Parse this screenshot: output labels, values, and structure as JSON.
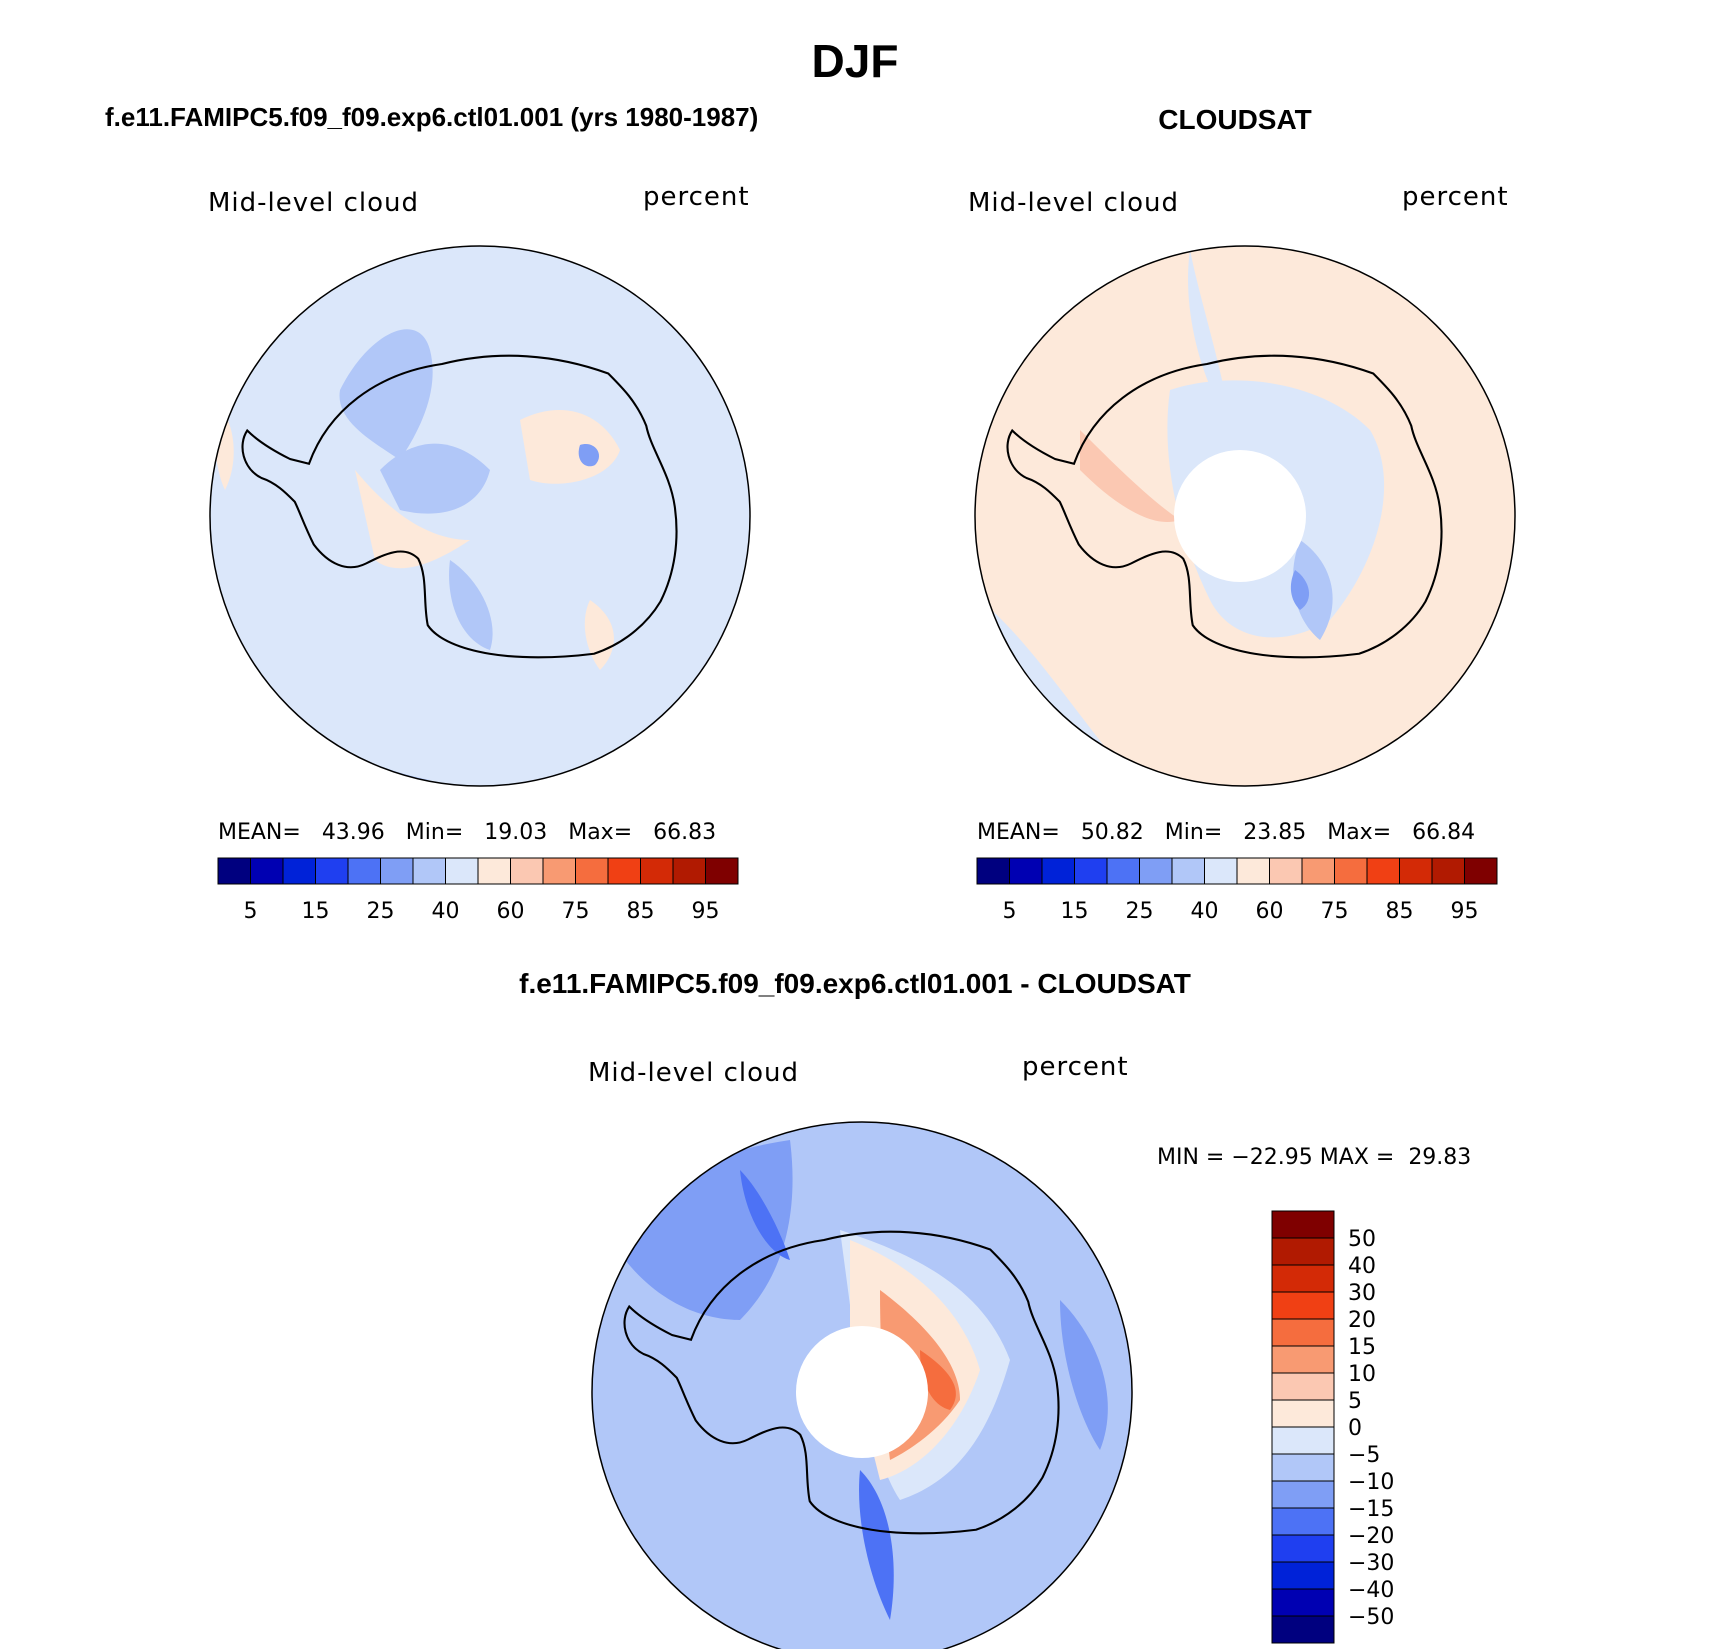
{
  "page": {
    "title": "DJF",
    "diff_title": "f.e11.FAMIPC5.f09_f09.exp6.ctl01.001 - CLOUDSAT"
  },
  "colors": {
    "abs_scale": [
      "#00007f",
      "#0000b2",
      "#0022d8",
      "#1f3ff0",
      "#4d72f5",
      "#7f9ef5",
      "#b1c7f8",
      "#dbe7fa",
      "#fde9da",
      "#fbc8b2",
      "#f89a72",
      "#f56d3e",
      "#f04014",
      "#d32a06",
      "#b11a01",
      "#7f0000"
    ],
    "diff_scale": [
      "#00007f",
      "#0000b2",
      "#0022d8",
      "#1f3ff0",
      "#4d72f5",
      "#7f9ef5",
      "#b1c7f8",
      "#dbe7fa",
      "#fde9da",
      "#fbc8b2",
      "#f89a72",
      "#f56d3e",
      "#f04014",
      "#d32a06",
      "#b11a01",
      "#7f0000"
    ],
    "coastline": "#000000"
  },
  "chart_data": [
    {
      "type": "heatmap",
      "projection": "south-polar-stereographic",
      "title": "f.e11.FAMIPC5.f09_f09.exp6.ctl01.001 (yrs 1980-1987)",
      "field_label": "Mid-level cloud",
      "units_label": "percent",
      "stats": {
        "mean_label": "MEAN=",
        "mean": "43.96",
        "min_label": "Min=",
        "min": "19.03",
        "max_label": "Max=",
        "max": "66.83"
      },
      "colorbar_ticks": [
        "5",
        "15",
        "25",
        "40",
        "60",
        "75",
        "85",
        "95"
      ],
      "dominant_range": "40-50",
      "has_missing_pole": false
    },
    {
      "type": "heatmap",
      "projection": "south-polar-stereographic",
      "title": "CLOUDSAT",
      "field_label": "Mid-level cloud",
      "units_label": "percent",
      "stats": {
        "mean_label": "MEAN=",
        "mean": "50.82",
        "min_label": "Min=",
        "min": "23.85",
        "max_label": "Max=",
        "max": "66.84"
      },
      "colorbar_ticks": [
        "5",
        "15",
        "25",
        "40",
        "60",
        "75",
        "85",
        "95"
      ],
      "dominant_range": "50-60",
      "has_missing_pole": true
    },
    {
      "type": "heatmap",
      "projection": "south-polar-stereographic",
      "title": "f.e11.FAMIPC5.f09_f09.exp6.ctl01.001 - CLOUDSAT",
      "field_label": "Mid-level cloud",
      "units_label": "percent",
      "stats": {
        "min_label": "MIN =",
        "min": "−22.95",
        "max_label": "MAX =",
        "max": "29.83"
      },
      "colorbar_ticks": [
        "50",
        "40",
        "30",
        "20",
        "15",
        "10",
        "5",
        "0",
        "−5",
        "−10",
        "−15",
        "−20",
        "−30",
        "−40",
        "−50"
      ],
      "dominant_range": "-10 to 0",
      "has_missing_pole": true
    }
  ]
}
